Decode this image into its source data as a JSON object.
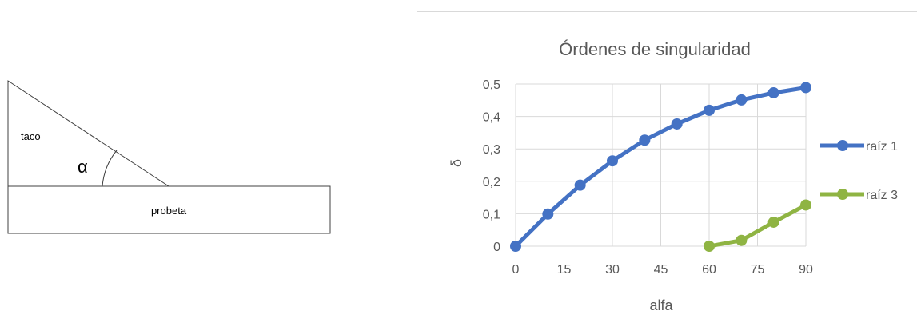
{
  "diagram": {
    "wedge_label": "taco",
    "specimen_label": "probeta",
    "angle_symbol": "α"
  },
  "chart_data": {
    "type": "line",
    "title": "Órdenes de singularidad",
    "xlabel": "alfa",
    "ylabel": "δ",
    "xlim": [
      0,
      90
    ],
    "ylim": [
      0,
      0.5
    ],
    "x_ticks": [
      "0",
      "15",
      "30",
      "45",
      "60",
      "75",
      "90"
    ],
    "y_ticks": [
      "0",
      "0,1",
      "0,2",
      "0,3",
      "0,4",
      "0,5"
    ],
    "grid": true,
    "legend_position": "right",
    "series": [
      {
        "name": "raíz 1",
        "color": "#4472c4",
        "x": [
          0,
          10,
          20,
          30,
          40,
          50,
          60,
          70,
          80,
          90
        ],
        "y": [
          0,
          0.099,
          0.188,
          0.263,
          0.327,
          0.377,
          0.419,
          0.451,
          0.473,
          0.489
        ]
      },
      {
        "name": "raíz 3",
        "color": "#8fb443",
        "x": [
          60,
          70,
          80,
          90
        ],
        "y": [
          0,
          0.018,
          0.074,
          0.127
        ]
      }
    ]
  }
}
